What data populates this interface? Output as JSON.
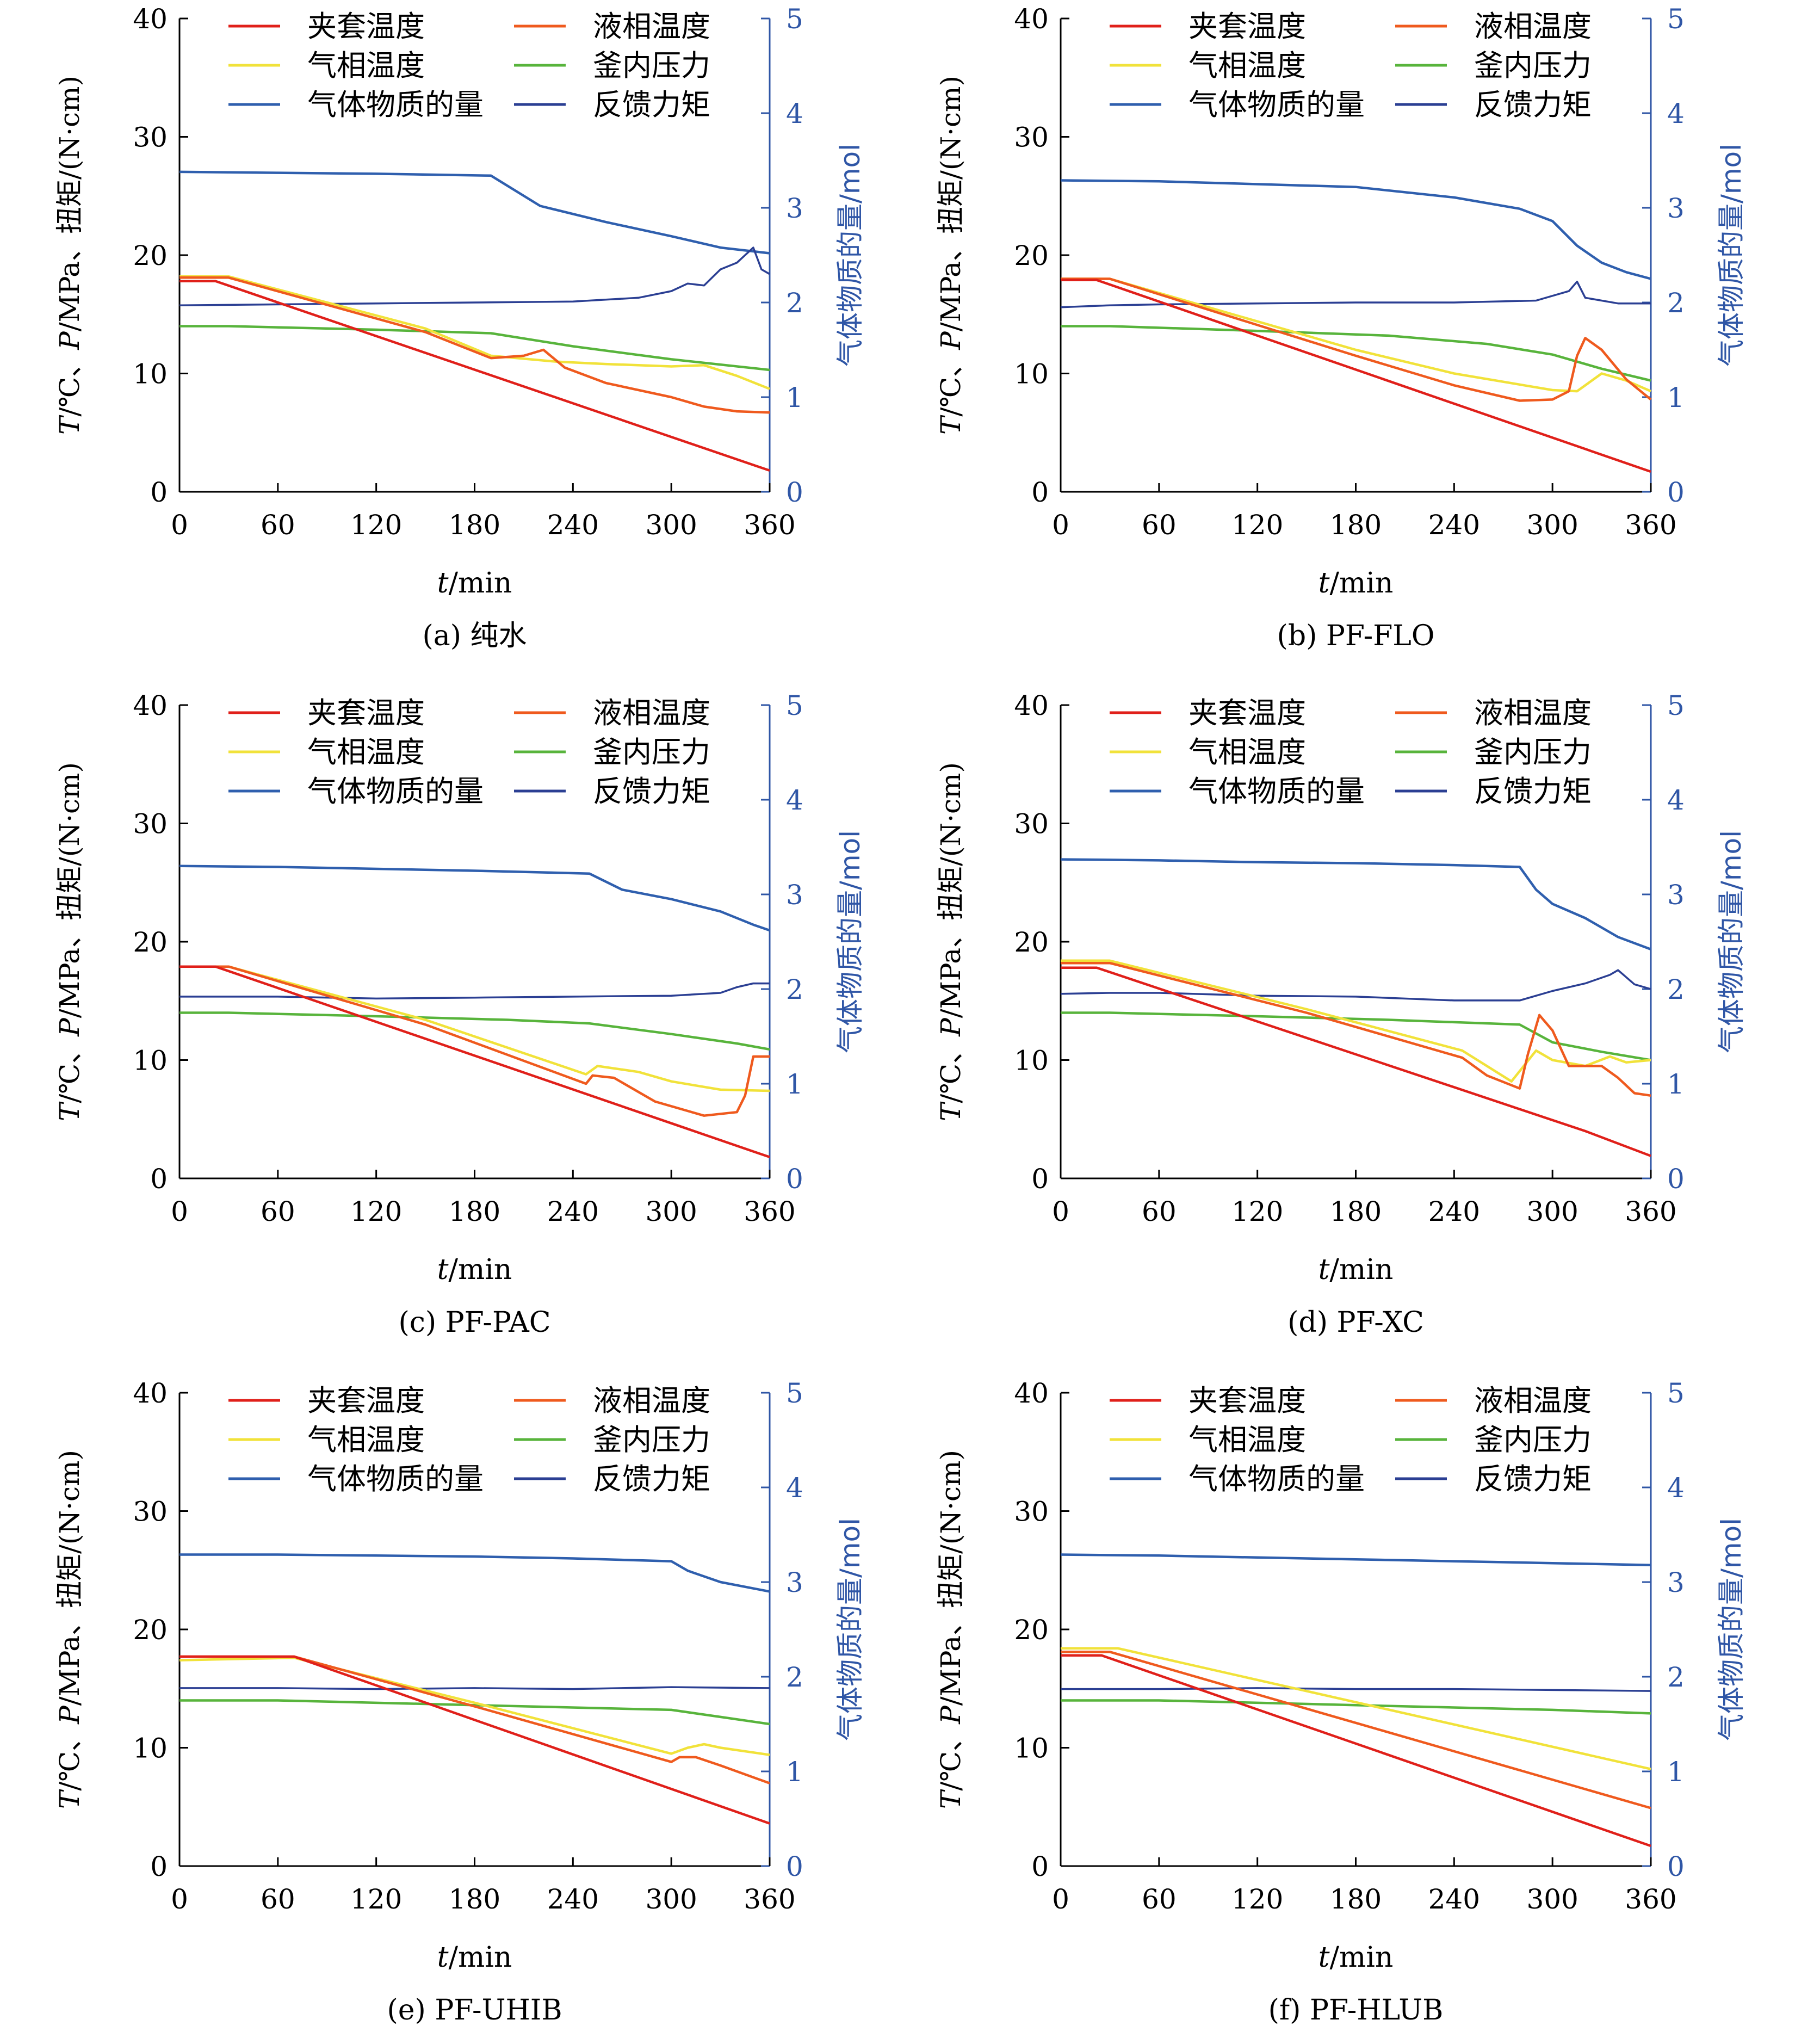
{
  "axes_labels": {
    "left_prefix_T": "T",
    "left_mid1": "/℃、",
    "left_prefix_P": "P",
    "left_mid2": "/MPa、扭矩/(N·cm)",
    "right": "气体物质的量/mol",
    "x_prefix": "t",
    "x_suffix": "/min"
  },
  "legend": {
    "items": [
      {
        "key": "jacket",
        "label": "夹套温度"
      },
      {
        "key": "liquid",
        "label": "液相温度"
      },
      {
        "key": "gas",
        "label": "气相温度"
      },
      {
        "key": "pressure",
        "label": "釜内压力"
      },
      {
        "key": "moles",
        "label": "气体物质的量"
      },
      {
        "key": "torque",
        "label": "反馈力矩"
      }
    ]
  },
  "colors": {
    "jacket": "#e0201a",
    "liquid": "#ef5a1e",
    "gas": "#f1e23a",
    "pressure": "#58b43c",
    "moles": "#2f5fae",
    "torque": "#2b3f93",
    "axis_right": "#2f56a6"
  },
  "chart_data": [
    {
      "type": "line",
      "caption": "(a) 纯水",
      "x_ticks": [
        0,
        60,
        120,
        180,
        240,
        300,
        360
      ],
      "xlim": [
        0,
        360
      ],
      "y_left_ticks": [
        0,
        10,
        20,
        30,
        40
      ],
      "ylim_left": [
        0,
        40
      ],
      "y_right_ticks": [
        0,
        1,
        2,
        3,
        4,
        5
      ],
      "ylim_right": [
        0,
        5
      ],
      "series": [
        {
          "name": "夹套温度",
          "key": "jacket",
          "axis": "left",
          "x": [
            0,
            22,
            360
          ],
          "y": [
            17.8,
            17.8,
            1.8
          ]
        },
        {
          "name": "液相温度",
          "key": "liquid",
          "axis": "left",
          "x": [
            0,
            30,
            150,
            190,
            210,
            222,
            235,
            260,
            300,
            320,
            340,
            360
          ],
          "y": [
            18.1,
            18.1,
            13.5,
            11.3,
            11.5,
            12.0,
            10.5,
            9.2,
            8.0,
            7.2,
            6.8,
            6.7
          ]
        },
        {
          "name": "气相温度",
          "key": "gas",
          "axis": "left",
          "x": [
            0,
            30,
            150,
            190,
            230,
            260,
            300,
            320,
            340,
            360
          ],
          "y": [
            18.2,
            18.2,
            13.8,
            11.5,
            11.0,
            10.8,
            10.6,
            10.7,
            9.8,
            8.7
          ]
        },
        {
          "name": "釜内压力",
          "key": "pressure",
          "axis": "left",
          "x": [
            0,
            30,
            120,
            190,
            240,
            300,
            360
          ],
          "y": [
            14.0,
            14.0,
            13.7,
            13.4,
            12.3,
            11.2,
            10.3
          ]
        },
        {
          "name": "气体物质的量",
          "key": "moles",
          "axis": "right",
          "x": [
            0,
            60,
            120,
            190,
            220,
            260,
            300,
            330,
            360
          ],
          "y": [
            3.38,
            3.37,
            3.36,
            3.34,
            3.02,
            2.85,
            2.7,
            2.58,
            2.52
          ]
        },
        {
          "name": "反馈力矩",
          "key": "torque",
          "axis": "right",
          "x": [
            0,
            60,
            120,
            180,
            240,
            280,
            300,
            310,
            320,
            330,
            340,
            350,
            355,
            360
          ],
          "y": [
            1.97,
            1.98,
            1.99,
            2.0,
            2.01,
            2.05,
            2.12,
            2.2,
            2.18,
            2.35,
            2.42,
            2.58,
            2.35,
            2.3
          ]
        }
      ]
    },
    {
      "type": "line",
      "caption": "(b) PF-FLO",
      "x_ticks": [
        0,
        60,
        120,
        180,
        240,
        300,
        360
      ],
      "xlim": [
        0,
        360
      ],
      "y_left_ticks": [
        0,
        10,
        20,
        30,
        40
      ],
      "ylim_left": [
        0,
        40
      ],
      "y_right_ticks": [
        0,
        1,
        2,
        3,
        4,
        5
      ],
      "ylim_right": [
        0,
        5
      ],
      "series": [
        {
          "name": "夹套温度",
          "key": "jacket",
          "axis": "left",
          "x": [
            0,
            22,
            360
          ],
          "y": [
            17.9,
            17.9,
            1.7
          ]
        },
        {
          "name": "液相温度",
          "key": "liquid",
          "axis": "left",
          "x": [
            0,
            30,
            180,
            240,
            280,
            300,
            310,
            315,
            320,
            330,
            345,
            360
          ],
          "y": [
            18.0,
            18.0,
            11.5,
            9.0,
            7.7,
            7.8,
            8.5,
            11.5,
            13.0,
            12.0,
            9.5,
            7.8
          ]
        },
        {
          "name": "气相温度",
          "key": "gas",
          "axis": "left",
          "x": [
            0,
            30,
            180,
            240,
            300,
            315,
            330,
            345,
            360
          ],
          "y": [
            18.0,
            18.0,
            12.0,
            10.0,
            8.6,
            8.5,
            10.0,
            9.4,
            8.5
          ]
        },
        {
          "name": "釜内压力",
          "key": "pressure",
          "axis": "left",
          "x": [
            0,
            30,
            120,
            200,
            260,
            300,
            330,
            360
          ],
          "y": [
            14.0,
            14.0,
            13.6,
            13.2,
            12.5,
            11.6,
            10.4,
            9.4
          ]
        },
        {
          "name": "气体物质的量",
          "key": "moles",
          "axis": "right",
          "x": [
            0,
            60,
            120,
            180,
            240,
            280,
            300,
            315,
            330,
            345,
            360
          ],
          "y": [
            3.29,
            3.28,
            3.25,
            3.22,
            3.11,
            2.99,
            2.86,
            2.6,
            2.42,
            2.32,
            2.25
          ]
        },
        {
          "name": "反馈力矩",
          "key": "torque",
          "axis": "right",
          "x": [
            0,
            30,
            60,
            120,
            180,
            240,
            290,
            310,
            315,
            320,
            340,
            360
          ],
          "y": [
            1.95,
            1.97,
            1.98,
            1.99,
            2.0,
            2.0,
            2.02,
            2.12,
            2.22,
            2.05,
            1.99,
            1.99
          ]
        }
      ]
    },
    {
      "type": "line",
      "caption": "(c) PF-PAC",
      "x_ticks": [
        0,
        60,
        120,
        180,
        240,
        300,
        360
      ],
      "xlim": [
        0,
        360
      ],
      "y_left_ticks": [
        0,
        10,
        20,
        30,
        40
      ],
      "ylim_left": [
        0,
        40
      ],
      "y_right_ticks": [
        0,
        1,
        2,
        3,
        4,
        5
      ],
      "ylim_right": [
        0,
        5
      ],
      "series": [
        {
          "name": "夹套温度",
          "key": "jacket",
          "axis": "left",
          "x": [
            0,
            22,
            360
          ],
          "y": [
            17.9,
            17.9,
            1.8
          ]
        },
        {
          "name": "液相温度",
          "key": "liquid",
          "axis": "left",
          "x": [
            0,
            30,
            150,
            248,
            252,
            265,
            290,
            320,
            340,
            345,
            350,
            360
          ],
          "y": [
            17.9,
            17.9,
            13.0,
            8.0,
            8.7,
            8.5,
            6.5,
            5.3,
            5.6,
            7.0,
            10.3,
            10.3
          ]
        },
        {
          "name": "气相温度",
          "key": "gas",
          "axis": "left",
          "x": [
            0,
            30,
            150,
            248,
            255,
            280,
            300,
            330,
            360
          ],
          "y": [
            17.9,
            17.9,
            13.4,
            8.8,
            9.5,
            9.0,
            8.2,
            7.5,
            7.4
          ]
        },
        {
          "name": "釜内压力",
          "key": "pressure",
          "axis": "left",
          "x": [
            0,
            30,
            120,
            200,
            250,
            300,
            340,
            360
          ],
          "y": [
            14.0,
            14.0,
            13.7,
            13.4,
            13.1,
            12.2,
            11.4,
            10.9
          ]
        },
        {
          "name": "气体物质的量",
          "key": "moles",
          "axis": "right",
          "x": [
            0,
            60,
            120,
            180,
            250,
            270,
            300,
            330,
            350,
            360
          ],
          "y": [
            3.3,
            3.29,
            3.27,
            3.25,
            3.22,
            3.05,
            2.95,
            2.82,
            2.68,
            2.62
          ]
        },
        {
          "name": "反馈力矩",
          "key": "torque",
          "axis": "right",
          "x": [
            0,
            60,
            120,
            180,
            240,
            300,
            330,
            340,
            350,
            360
          ],
          "y": [
            1.92,
            1.92,
            1.9,
            1.91,
            1.92,
            1.93,
            1.96,
            2.02,
            2.06,
            2.06
          ]
        }
      ]
    },
    {
      "type": "line",
      "caption": "(d) PF-XC",
      "x_ticks": [
        0,
        60,
        120,
        180,
        240,
        300,
        360
      ],
      "xlim": [
        0,
        360
      ],
      "y_left_ticks": [
        0,
        10,
        20,
        30,
        40
      ],
      "ylim_left": [
        0,
        40
      ],
      "y_right_ticks": [
        0,
        1,
        2,
        3,
        4,
        5
      ],
      "ylim_right": [
        0,
        5
      ],
      "series": [
        {
          "name": "夹套温度",
          "key": "jacket",
          "axis": "left",
          "x": [
            0,
            22,
            320,
            360
          ],
          "y": [
            17.8,
            17.8,
            4.0,
            1.9
          ]
        },
        {
          "name": "液相温度",
          "key": "liquid",
          "axis": "left",
          "x": [
            0,
            30,
            150,
            245,
            260,
            280,
            285,
            292,
            300,
            310,
            330,
            340,
            350,
            360
          ],
          "y": [
            18.2,
            18.2,
            14.0,
            10.2,
            8.7,
            7.6,
            10.5,
            13.8,
            12.5,
            9.5,
            9.5,
            8.5,
            7.2,
            7.0
          ]
        },
        {
          "name": "气相温度",
          "key": "gas",
          "axis": "left",
          "x": [
            0,
            30,
            150,
            245,
            275,
            290,
            300,
            320,
            335,
            345,
            360
          ],
          "y": [
            18.4,
            18.4,
            14.3,
            10.8,
            8.2,
            10.8,
            10.0,
            9.5,
            10.3,
            9.8,
            10.0
          ]
        },
        {
          "name": "釜内压力",
          "key": "pressure",
          "axis": "left",
          "x": [
            0,
            30,
            120,
            200,
            280,
            300,
            330,
            360
          ],
          "y": [
            14.0,
            14.0,
            13.7,
            13.4,
            13.0,
            11.5,
            10.7,
            10.0
          ]
        },
        {
          "name": "气体物质的量",
          "key": "moles",
          "axis": "right",
          "x": [
            0,
            60,
            120,
            180,
            240,
            280,
            290,
            300,
            320,
            340,
            360
          ],
          "y": [
            3.37,
            3.36,
            3.34,
            3.33,
            3.31,
            3.29,
            3.05,
            2.9,
            2.75,
            2.55,
            2.42
          ]
        },
        {
          "name": "反馈力矩",
          "key": "torque",
          "axis": "right",
          "x": [
            0,
            30,
            60,
            120,
            180,
            240,
            280,
            300,
            320,
            335,
            340,
            350,
            360
          ],
          "y": [
            1.95,
            1.96,
            1.96,
            1.93,
            1.92,
            1.88,
            1.88,
            1.98,
            2.06,
            2.15,
            2.2,
            2.05,
            2.0
          ]
        }
      ]
    },
    {
      "type": "line",
      "caption": "(e) PF-UHIB",
      "x_ticks": [
        0,
        60,
        120,
        180,
        240,
        300,
        360
      ],
      "xlim": [
        0,
        360
      ],
      "y_left_ticks": [
        0,
        10,
        20,
        30,
        40
      ],
      "ylim_left": [
        0,
        40
      ],
      "y_right_ticks": [
        0,
        1,
        2,
        3,
        4,
        5
      ],
      "ylim_right": [
        0,
        5
      ],
      "series": [
        {
          "name": "夹套温度",
          "key": "jacket",
          "axis": "left",
          "x": [
            0,
            70,
            360
          ],
          "y": [
            17.7,
            17.7,
            3.6
          ]
        },
        {
          "name": "液相温度",
          "key": "liquid",
          "axis": "left",
          "x": [
            0,
            70,
            180,
            300,
            305,
            315,
            330,
            360
          ],
          "y": [
            17.7,
            17.7,
            13.5,
            8.8,
            9.2,
            9.2,
            8.5,
            7.0
          ]
        },
        {
          "name": "气相温度",
          "key": "gas",
          "axis": "left",
          "x": [
            0,
            70,
            180,
            300,
            310,
            320,
            330,
            360
          ],
          "y": [
            17.4,
            17.6,
            13.8,
            9.5,
            10.0,
            10.3,
            10.0,
            9.4
          ]
        },
        {
          "name": "釜内压力",
          "key": "pressure",
          "axis": "left",
          "x": [
            0,
            60,
            180,
            300,
            330,
            360
          ],
          "y": [
            14.0,
            14.0,
            13.6,
            13.2,
            12.6,
            12.0
          ]
        },
        {
          "name": "气体物质的量",
          "key": "moles",
          "axis": "right",
          "x": [
            0,
            60,
            120,
            180,
            240,
            300,
            310,
            330,
            360
          ],
          "y": [
            3.29,
            3.29,
            3.28,
            3.27,
            3.25,
            3.22,
            3.12,
            3.0,
            2.9
          ]
        },
        {
          "name": "反馈力矩",
          "key": "torque",
          "axis": "right",
          "x": [
            0,
            60,
            120,
            180,
            240,
            300,
            360
          ],
          "y": [
            1.88,
            1.88,
            1.87,
            1.88,
            1.87,
            1.89,
            1.88
          ]
        }
      ]
    },
    {
      "type": "line",
      "caption": "(f) PF-HLUB",
      "x_ticks": [
        0,
        60,
        120,
        180,
        240,
        300,
        360
      ],
      "xlim": [
        0,
        360
      ],
      "y_left_ticks": [
        0,
        10,
        20,
        30,
        40
      ],
      "ylim_left": [
        0,
        40
      ],
      "y_right_ticks": [
        0,
        1,
        2,
        3,
        4,
        5
      ],
      "ylim_right": [
        0,
        5
      ],
      "series": [
        {
          "name": "夹套温度",
          "key": "jacket",
          "axis": "left",
          "x": [
            0,
            25,
            360
          ],
          "y": [
            17.8,
            17.8,
            1.7
          ]
        },
        {
          "name": "液相温度",
          "key": "liquid",
          "axis": "left",
          "x": [
            0,
            30,
            360
          ],
          "y": [
            18.1,
            18.1,
            4.9
          ]
        },
        {
          "name": "气相温度",
          "key": "gas",
          "axis": "left",
          "x": [
            0,
            35,
            360
          ],
          "y": [
            18.4,
            18.4,
            8.2
          ]
        },
        {
          "name": "釜内压力",
          "key": "pressure",
          "axis": "left",
          "x": [
            0,
            60,
            180,
            300,
            360
          ],
          "y": [
            14.0,
            14.0,
            13.6,
            13.2,
            12.9
          ]
        },
        {
          "name": "气体物质的量",
          "key": "moles",
          "axis": "right",
          "x": [
            0,
            60,
            120,
            180,
            240,
            300,
            360
          ],
          "y": [
            3.29,
            3.28,
            3.26,
            3.24,
            3.22,
            3.2,
            3.18
          ]
        },
        {
          "name": "反馈力矩",
          "key": "torque",
          "axis": "right",
          "x": [
            0,
            60,
            120,
            180,
            240,
            300,
            360
          ],
          "y": [
            1.87,
            1.87,
            1.88,
            1.87,
            1.87,
            1.86,
            1.85
          ]
        }
      ]
    }
  ]
}
